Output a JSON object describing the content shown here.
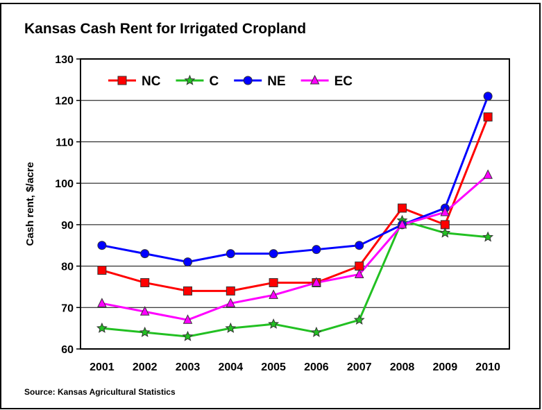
{
  "chart_data": {
    "type": "line",
    "title": "Kansas Cash Rent for Irrigated Cropland",
    "y_label": "Cash rent, $/acre",
    "source": "Source:  Kansas Agricultural Statistics",
    "categories": [
      "2001",
      "2002",
      "2003",
      "2004",
      "2005",
      "2006",
      "2007",
      "2008",
      "2009",
      "2010"
    ],
    "series": [
      {
        "name": "NC",
        "color": "#ff0000",
        "marker": "square",
        "values": [
          79,
          76,
          74,
          74,
          76,
          76,
          80,
          94,
          90,
          116
        ]
      },
      {
        "name": "C",
        "color": "#22c022",
        "marker": "star",
        "values": [
          65,
          64,
          63,
          65,
          66,
          64,
          67,
          91,
          88,
          87
        ]
      },
      {
        "name": "NE",
        "color": "#0000ff",
        "marker": "circle",
        "values": [
          85,
          83,
          81,
          83,
          83,
          84,
          85,
          90,
          94,
          121
        ]
      },
      {
        "name": "EC",
        "color": "#ff00ff",
        "marker": "triangle",
        "values": [
          71,
          69,
          67,
          71,
          73,
          76,
          78,
          90,
          93,
          102
        ]
      }
    ],
    "ylim": [
      60,
      130
    ],
    "yticks": [
      60,
      70,
      80,
      90,
      100,
      110,
      120,
      130
    ],
    "grid": true,
    "legend": "top-left"
  }
}
